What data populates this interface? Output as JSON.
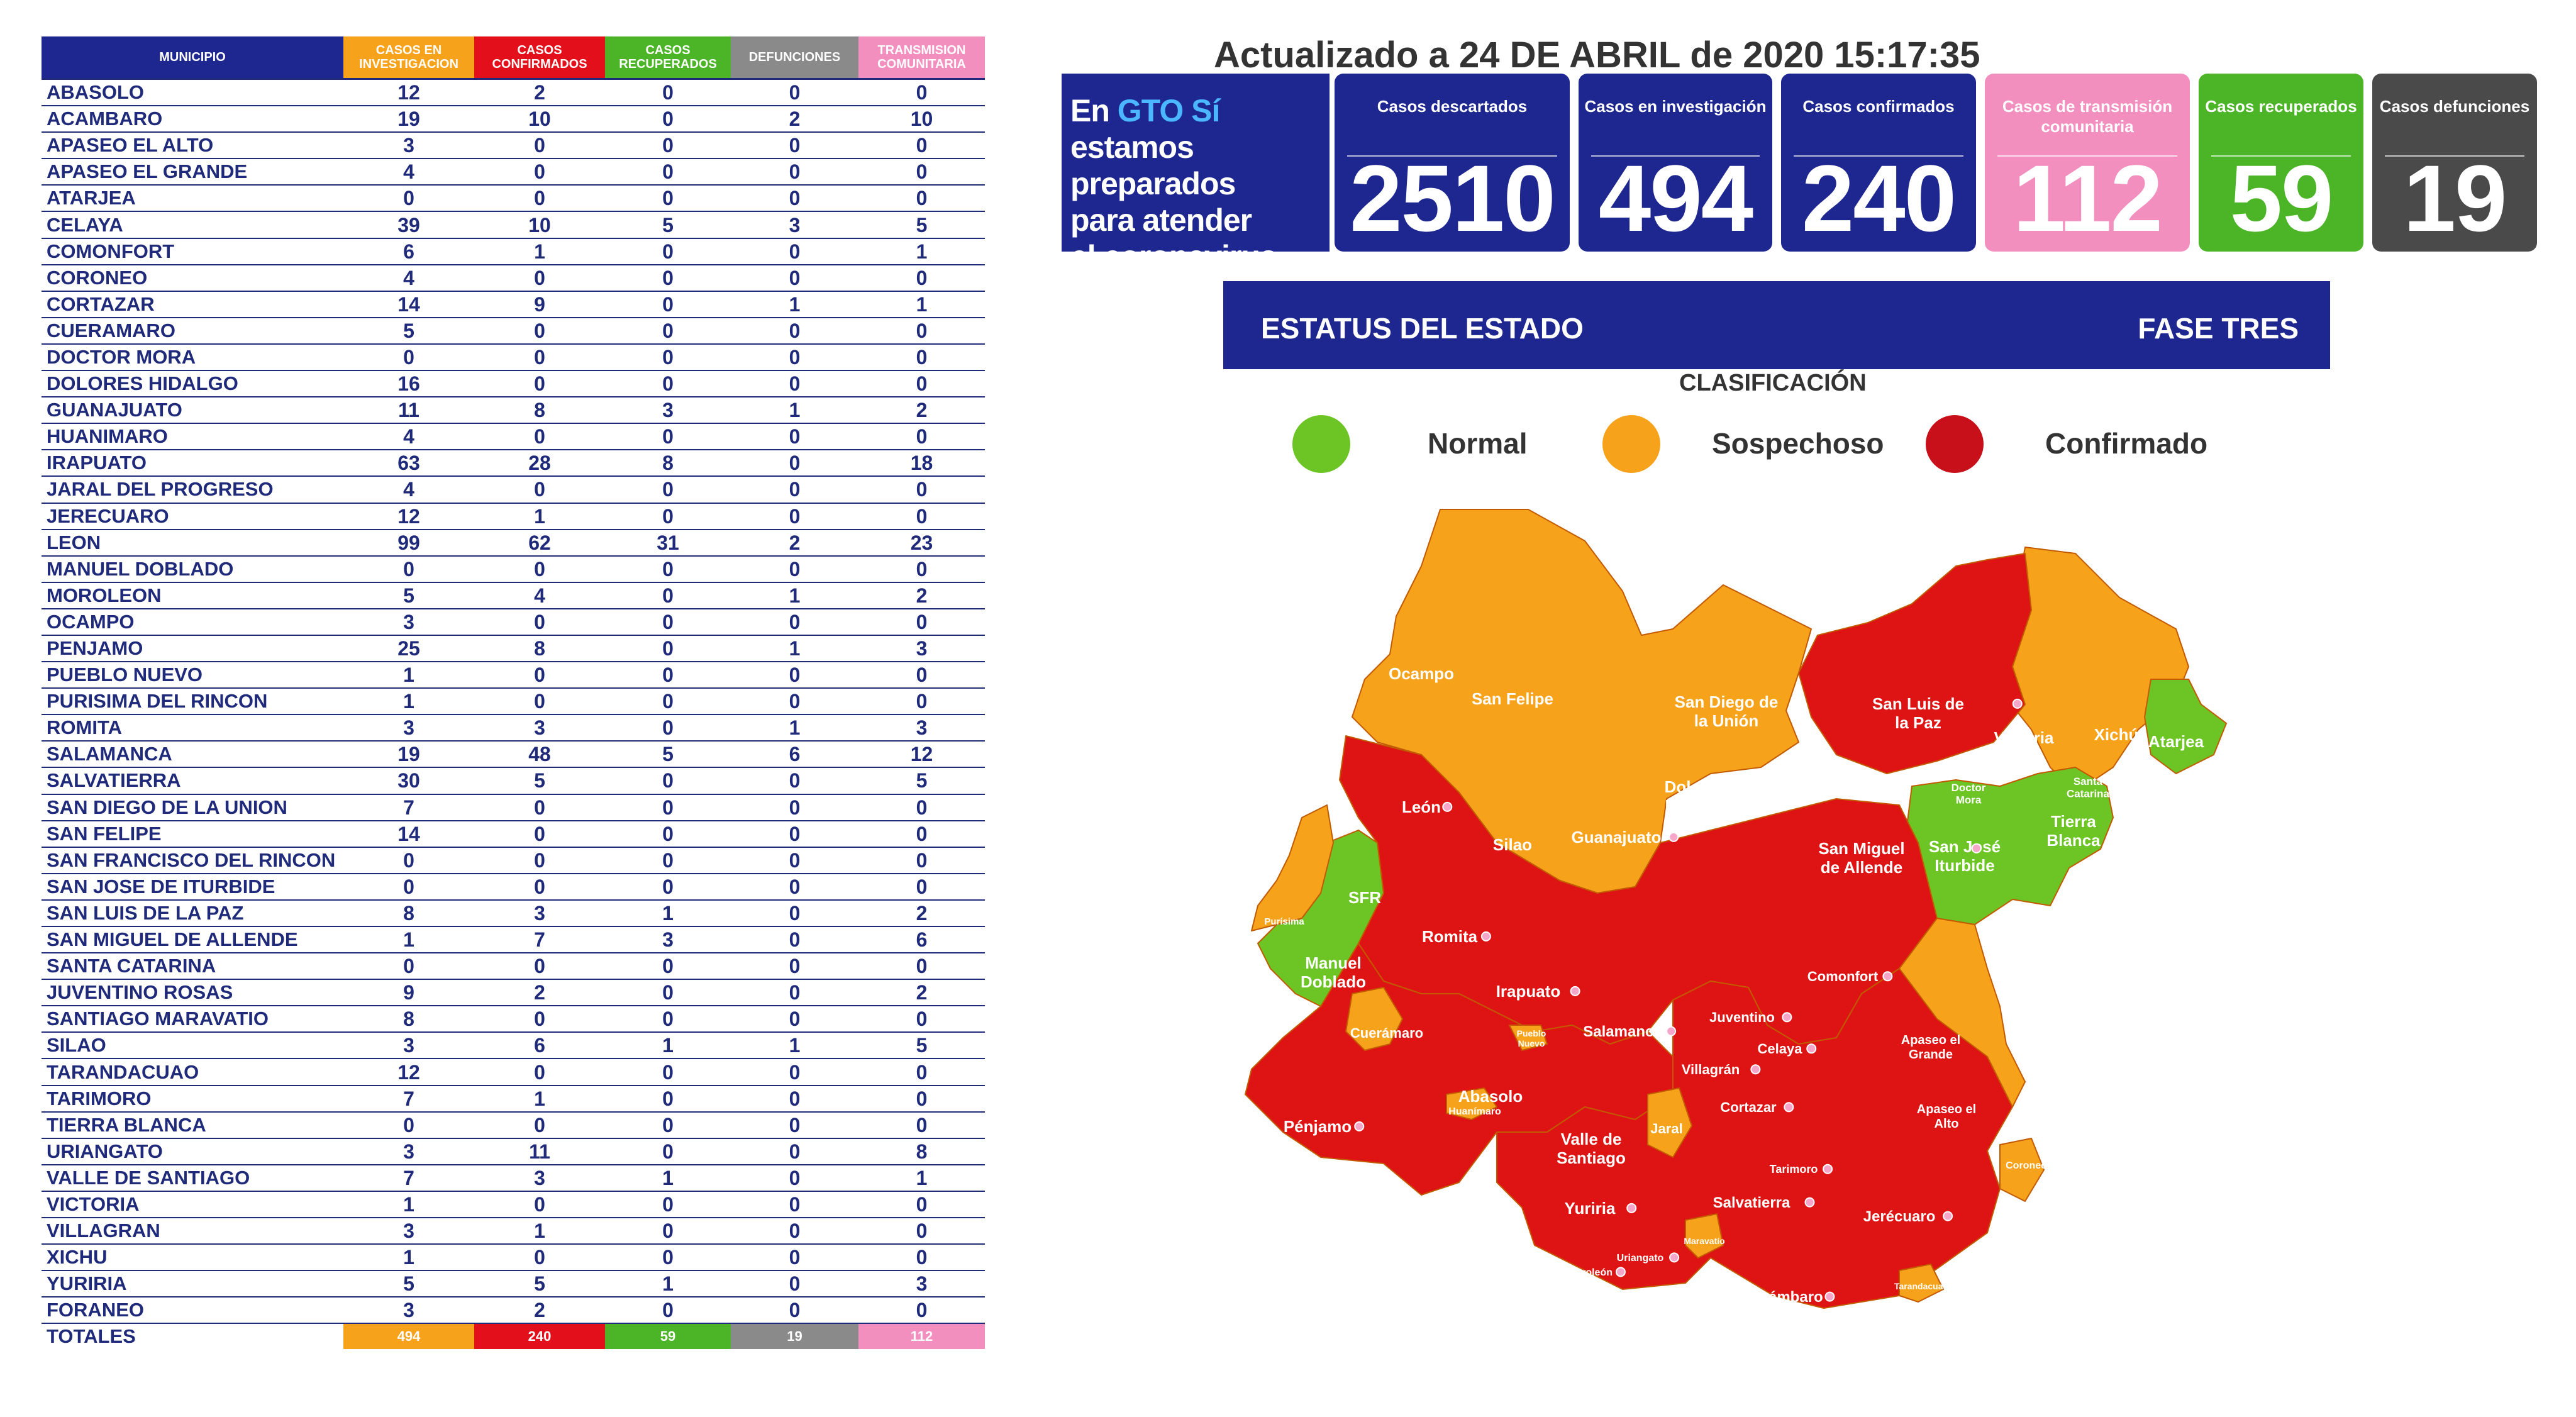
{
  "table": {
    "headers": [
      "MUNICIPIO",
      "CASOS EN INVESTIGACION",
      "CASOS CONFIRMADOS",
      "CASOS RECUPERADOS",
      "DEFUNCIONES",
      "TRANSMISION COMUNITARIA"
    ],
    "header_colors": [
      "#1e2790",
      "#f7a21b",
      "#e3101b",
      "#4cb427",
      "#8a8a8a",
      "#f28fbf"
    ],
    "rows": [
      {
        "municipio": "ABASOLO",
        "inv": "12",
        "conf": "2",
        "rec": "0",
        "def": "0",
        "trans": "0"
      },
      {
        "municipio": "ACAMBARO",
        "inv": "19",
        "conf": "10",
        "rec": "0",
        "def": "2",
        "trans": "10"
      },
      {
        "municipio": "APASEO EL ALTO",
        "inv": "3",
        "conf": "0",
        "rec": "0",
        "def": "0",
        "trans": "0"
      },
      {
        "municipio": "APASEO EL GRANDE",
        "inv": "4",
        "conf": "0",
        "rec": "0",
        "def": "0",
        "trans": "0"
      },
      {
        "municipio": "ATARJEA",
        "inv": "0",
        "conf": "0",
        "rec": "0",
        "def": "0",
        "trans": "0"
      },
      {
        "municipio": "CELAYA",
        "inv": "39",
        "conf": "10",
        "rec": "5",
        "def": "3",
        "trans": "5"
      },
      {
        "municipio": "COMONFORT",
        "inv": "6",
        "conf": "1",
        "rec": "0",
        "def": "0",
        "trans": "1"
      },
      {
        "municipio": "CORONEO",
        "inv": "4",
        "conf": "0",
        "rec": "0",
        "def": "0",
        "trans": "0"
      },
      {
        "municipio": "CORTAZAR",
        "inv": "14",
        "conf": "9",
        "rec": "0",
        "def": "1",
        "trans": "1"
      },
      {
        "municipio": "CUERAMARO",
        "inv": "5",
        "conf": "0",
        "rec": "0",
        "def": "0",
        "trans": "0"
      },
      {
        "municipio": "DOCTOR MORA",
        "inv": "0",
        "conf": "0",
        "rec": "0",
        "def": "0",
        "trans": "0"
      },
      {
        "municipio": "DOLORES HIDALGO",
        "inv": "16",
        "conf": "0",
        "rec": "0",
        "def": "0",
        "trans": "0"
      },
      {
        "municipio": "GUANAJUATO",
        "inv": "11",
        "conf": "8",
        "rec": "3",
        "def": "1",
        "trans": "2"
      },
      {
        "municipio": "HUANIMARO",
        "inv": "4",
        "conf": "0",
        "rec": "0",
        "def": "0",
        "trans": "0"
      },
      {
        "municipio": "IRAPUATO",
        "inv": "63",
        "conf": "28",
        "rec": "8",
        "def": "0",
        "trans": "18"
      },
      {
        "municipio": "JARAL DEL PROGRESO",
        "inv": "4",
        "conf": "0",
        "rec": "0",
        "def": "0",
        "trans": "0"
      },
      {
        "municipio": "JERECUARO",
        "inv": "12",
        "conf": "1",
        "rec": "0",
        "def": "0",
        "trans": "0"
      },
      {
        "municipio": "LEON",
        "inv": "99",
        "conf": "62",
        "rec": "31",
        "def": "2",
        "trans": "23"
      },
      {
        "municipio": "MANUEL DOBLADO",
        "inv": "0",
        "conf": "0",
        "rec": "0",
        "def": "0",
        "trans": "0"
      },
      {
        "municipio": "MOROLEON",
        "inv": "5",
        "conf": "4",
        "rec": "0",
        "def": "1",
        "trans": "2"
      },
      {
        "municipio": "OCAMPO",
        "inv": "3",
        "conf": "0",
        "rec": "0",
        "def": "0",
        "trans": "0"
      },
      {
        "municipio": "PENJAMO",
        "inv": "25",
        "conf": "8",
        "rec": "0",
        "def": "1",
        "trans": "3"
      },
      {
        "municipio": "PUEBLO NUEVO",
        "inv": "1",
        "conf": "0",
        "rec": "0",
        "def": "0",
        "trans": "0"
      },
      {
        "municipio": "PURISIMA DEL RINCON",
        "inv": "1",
        "conf": "0",
        "rec": "0",
        "def": "0",
        "trans": "0"
      },
      {
        "municipio": "ROMITA",
        "inv": "3",
        "conf": "3",
        "rec": "0",
        "def": "1",
        "trans": "3"
      },
      {
        "municipio": "SALAMANCA",
        "inv": "19",
        "conf": "48",
        "rec": "5",
        "def": "6",
        "trans": "12"
      },
      {
        "municipio": "SALVATIERRA",
        "inv": "30",
        "conf": "5",
        "rec": "0",
        "def": "0",
        "trans": "5"
      },
      {
        "municipio": "SAN DIEGO DE LA UNION",
        "inv": "7",
        "conf": "0",
        "rec": "0",
        "def": "0",
        "trans": "0"
      },
      {
        "municipio": "SAN FELIPE",
        "inv": "14",
        "conf": "0",
        "rec": "0",
        "def": "0",
        "trans": "0"
      },
      {
        "municipio": "SAN FRANCISCO DEL RINCON",
        "inv": "0",
        "conf": "0",
        "rec": "0",
        "def": "0",
        "trans": "0"
      },
      {
        "municipio": "SAN JOSE DE ITURBIDE",
        "inv": "0",
        "conf": "0",
        "rec": "0",
        "def": "0",
        "trans": "0"
      },
      {
        "municipio": "SAN LUIS DE LA PAZ",
        "inv": "8",
        "conf": "3",
        "rec": "1",
        "def": "0",
        "trans": "2"
      },
      {
        "municipio": "SAN MIGUEL DE ALLENDE",
        "inv": "1",
        "conf": "7",
        "rec": "3",
        "def": "0",
        "trans": "6"
      },
      {
        "municipio": "SANTA CATARINA",
        "inv": "0",
        "conf": "0",
        "rec": "0",
        "def": "0",
        "trans": "0"
      },
      {
        "municipio": "JUVENTINO ROSAS",
        "inv": "9",
        "conf": "2",
        "rec": "0",
        "def": "0",
        "trans": "2"
      },
      {
        "municipio": "SANTIAGO MARAVATIO",
        "inv": "8",
        "conf": "0",
        "rec": "0",
        "def": "0",
        "trans": "0"
      },
      {
        "municipio": "SILAO",
        "inv": "3",
        "conf": "6",
        "rec": "1",
        "def": "1",
        "trans": "5"
      },
      {
        "municipio": "TARANDACUAO",
        "inv": "12",
        "conf": "0",
        "rec": "0",
        "def": "0",
        "trans": "0"
      },
      {
        "municipio": "TARIMORO",
        "inv": "7",
        "conf": "1",
        "rec": "0",
        "def": "0",
        "trans": "0"
      },
      {
        "municipio": "TIERRA BLANCA",
        "inv": "0",
        "conf": "0",
        "rec": "0",
        "def": "0",
        "trans": "0"
      },
      {
        "municipio": "URIANGATO",
        "inv": "3",
        "conf": "11",
        "rec": "0",
        "def": "0",
        "trans": "8"
      },
      {
        "municipio": "VALLE DE SANTIAGO",
        "inv": "7",
        "conf": "3",
        "rec": "1",
        "def": "0",
        "trans": "1"
      },
      {
        "municipio": "VICTORIA",
        "inv": "1",
        "conf": "0",
        "rec": "0",
        "def": "0",
        "trans": "0"
      },
      {
        "municipio": "VILLAGRAN",
        "inv": "3",
        "conf": "1",
        "rec": "0",
        "def": "0",
        "trans": "0"
      },
      {
        "municipio": "XICHU",
        "inv": "1",
        "conf": "0",
        "rec": "0",
        "def": "0",
        "trans": "0"
      },
      {
        "municipio": "YURIRIA",
        "inv": "5",
        "conf": "5",
        "rec": "1",
        "def": "0",
        "trans": "3"
      },
      {
        "municipio": "FORANEO",
        "inv": "3",
        "conf": "2",
        "rec": "0",
        "def": "0",
        "trans": "0"
      }
    ],
    "totals": {
      "municipio": "TOTALES",
      "inv": "494",
      "conf": "240",
      "rec": "59",
      "def": "19",
      "trans": "112"
    }
  },
  "updated": "Actualizado a 24 DE ABRIL de 2020 15:17:35",
  "slogan": {
    "l1_a": "En ",
    "l1_gto": "GTO Sí",
    "l1_b": " estamos",
    "l2": "preparados",
    "l3": "para atender",
    "l4": "el coronavirus"
  },
  "stats": [
    {
      "label": "Casos descartados",
      "value": "2510",
      "color": "#1e2790"
    },
    {
      "label": "Casos en investigación",
      "value": "494",
      "color": "#1e2790"
    },
    {
      "label": "Casos confirmados",
      "value": "240",
      "color": "#1e2790"
    },
    {
      "label": "Casos de transmisión comunitaria",
      "value": "112",
      "color": "#f28fbf"
    },
    {
      "label": "Casos recuperados",
      "value": "59",
      "color": "#4cb427"
    },
    {
      "label": "Casos defunciones",
      "value": "19",
      "color": "#4a4a4a"
    }
  ],
  "status": {
    "left": "ESTATUS DEL ESTADO",
    "right": "FASE TRES"
  },
  "legend": {
    "title": "CLASIFICACIÓN",
    "items": [
      {
        "label": "Normal",
        "color": "#6cc524"
      },
      {
        "label": "Sospechoso",
        "color": "#f7a21b"
      },
      {
        "label": "Confirmado",
        "color": "#c8101b"
      }
    ]
  },
  "map": {
    "colors": {
      "normal": "#6cc524",
      "sospechoso": "#f7a21b",
      "confirmado": "#de1414"
    },
    "labels": [
      "Ocampo",
      "San Felipe",
      "San Diego de la Unión",
      "San Luis de la Paz",
      "Victoria",
      "Xichú",
      "Atarjea",
      "Santa Catarina",
      "Doctor Mora",
      "Tierra Blanca",
      "San José Iturbide",
      "Dolores Hidalgo",
      "León",
      "Guanajuato",
      "Silao",
      "San Miguel de Allende",
      "Purísima",
      "SFR",
      "Romita",
      "Manuel Doblado",
      "Irapuato",
      "Comonfort",
      "Cuerámaro",
      "Salamanca",
      "Juventino",
      "Celaya",
      "Apaseo el Grande",
      "Pueblo Nuevo",
      "Villagrán",
      "Abasolo",
      "Cortazar",
      "Apaseo el Alto",
      "Pénjamo",
      "Huanímaro",
      "Valle de Santiago",
      "Jaral",
      "Tarimoro",
      "Coroneo",
      "Salvatierra",
      "Yuriria",
      "Jerécuaro",
      "Maravatío",
      "Uriangato",
      "Moroleón",
      "Acámbaro",
      "Tarandacuao"
    ]
  }
}
